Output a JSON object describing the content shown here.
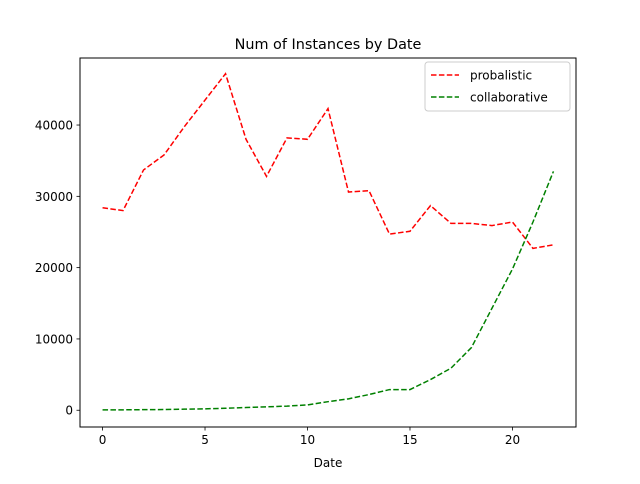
{
  "chart_data": {
    "type": "line",
    "title": "Num of Instances by Date",
    "xlabel": "Date",
    "ylabel": "",
    "xlim": [
      -1.1,
      23.1
    ],
    "ylim": [
      -2350,
      49400
    ],
    "x_ticks": [
      0,
      5,
      10,
      15,
      20
    ],
    "y_ticks": [
      0,
      10000,
      20000,
      30000,
      40000
    ],
    "legend_position": "top-right",
    "grid": false,
    "x": [
      0,
      1,
      2,
      3,
      4,
      5,
      6,
      7,
      8,
      9,
      10,
      11,
      12,
      13,
      14,
      15,
      16,
      17,
      18,
      19,
      20,
      21,
      22
    ],
    "series": [
      {
        "name": "probalistic",
        "color": "#ff0000",
        "line_style": "dashed",
        "values": [
          28400,
          28000,
          33700,
          35800,
          39800,
          43500,
          47200,
          38000,
          32800,
          38200,
          38000,
          42300,
          30600,
          30800,
          24700,
          25100,
          28700,
          26200,
          26200,
          25900,
          26400,
          22700,
          23200
        ]
      },
      {
        "name": "collaborative",
        "color": "#008000",
        "line_style": "dashed",
        "values": [
          50,
          60,
          80,
          100,
          150,
          200,
          280,
          380,
          480,
          580,
          750,
          1200,
          1600,
          2200,
          2900,
          2900,
          4300,
          5900,
          8800,
          14300,
          19800,
          26400,
          33500
        ]
      }
    ]
  }
}
